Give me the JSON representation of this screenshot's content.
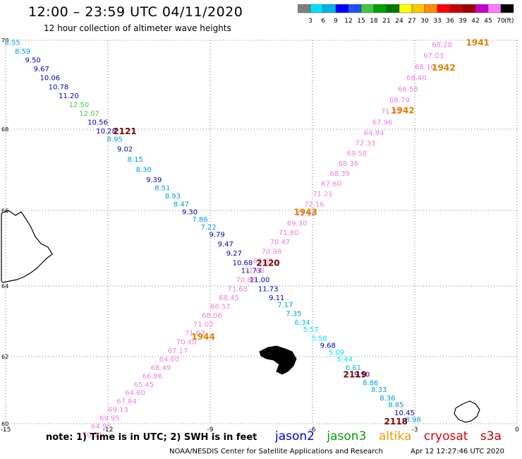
{
  "header": {
    "title": "12:00 – 23:59 UTC 04/11/2020",
    "subtitle": "12 hour collection of altimeter wave heights"
  },
  "colorbar": {
    "unit": "(ft)",
    "labels": [
      "3",
      "6",
      "9",
      "12",
      "15",
      "18",
      "21",
      "24",
      "27",
      "30",
      "33",
      "36",
      "39",
      "42",
      "45",
      "70"
    ],
    "colors": [
      "#808080",
      "#00e0ff",
      "#00b4e6",
      "#0000ff",
      "#1e50ff",
      "#3cc83c",
      "#00a000",
      "#007800",
      "#ffff00",
      "#ffc800",
      "#ff8c00",
      "#ff0000",
      "#c80000",
      "#a00000",
      "#c800c8",
      "#ff78ff",
      "#000000"
    ]
  },
  "footer": {
    "note": "note:  1) Time is in UTC;  2) SWH is in feet",
    "legend": [
      {
        "name": "jason2",
        "color": "#0000e0"
      },
      {
        "name": "jason3",
        "color": "#00a000"
      },
      {
        "name": "altika",
        "color": "#ff9900"
      },
      {
        "name": "cryosat",
        "color": "#e00000"
      },
      {
        "name": "s3a",
        "color": "#c00000"
      }
    ],
    "credit": "NOAA/NESDIS Center for Satellite Applications and Research",
    "stamp": "Apr 12 12:27:46 UTC 2020"
  },
  "chart_data": {
    "type": "scatter",
    "xlim": [
      -15,
      0
    ],
    "ylim": [
      60,
      70
    ],
    "x_ticks": [
      "-15",
      "-12",
      "-9",
      "-6",
      "-3",
      "0"
    ],
    "y_ticks": [
      "60",
      "62",
      "64",
      "66",
      "68",
      "70"
    ],
    "grid": true,
    "pass_labels": [
      {
        "text": "2121",
        "x": -11.85,
        "y": 67.88,
        "color": "#800000"
      },
      {
        "text": "2120",
        "x": -7.65,
        "y": 64.53,
        "color": "#800000"
      },
      {
        "text": "2119",
        "x": -5.1,
        "y": 61.38,
        "color": "#800000"
      },
      {
        "text": "2118",
        "x": -3.9,
        "y": 59.98,
        "color": "#800000"
      },
      {
        "text": "1941",
        "x": -1.5,
        "y": 69.88,
        "color": "#e08000"
      },
      {
        "text": "1942",
        "x": -2.5,
        "y": 69.32,
        "color": "#e08000"
      },
      {
        "text": "1942",
        "x": -3.7,
        "y": 68.36,
        "color": "#e08000"
      },
      {
        "text": "1943",
        "x": -6.55,
        "y": 65.88,
        "color": "#e08000"
      },
      {
        "text": "1944",
        "x": -9.55,
        "y": 62.48,
        "color": "#e08000"
      }
    ],
    "series": [
      {
        "name": "track-2120-2121",
        "points": [
          {
            "x": -14.8,
            "y": 69.9,
            "v": "8.55",
            "c": "#00a0e0"
          },
          {
            "x": -14.5,
            "y": 69.7,
            "v": "8.59",
            "c": "#00a0e0"
          },
          {
            "x": -14.2,
            "y": 69.5,
            "v": "9.50",
            "c": "#0000c0"
          },
          {
            "x": -13.95,
            "y": 69.3,
            "v": "9.67",
            "c": "#0000c0"
          },
          {
            "x": -13.7,
            "y": 69.1,
            "v": "10.06",
            "c": "#0000c0"
          },
          {
            "x": -13.45,
            "y": 68.9,
            "v": "10.78",
            "c": "#0000c0"
          },
          {
            "x": -13.15,
            "y": 68.7,
            "v": "11.20",
            "c": "#0000c0"
          },
          {
            "x": -12.85,
            "y": 68.5,
            "v": "12.50",
            "c": "#40d040"
          },
          {
            "x": -12.55,
            "y": 68.3,
            "v": "12.07",
            "c": "#40d040"
          },
          {
            "x": -12.3,
            "y": 68.1,
            "v": "10.56",
            "c": "#0000c0"
          },
          {
            "x": -12.05,
            "y": 67.9,
            "v": "10.28",
            "c": "#0000c0"
          },
          {
            "x": -11.8,
            "y": 67.7,
            "v": "8.95",
            "c": "#00a0e0"
          },
          {
            "x": -11.5,
            "y": 67.45,
            "v": "9.02",
            "c": "#0000c0"
          },
          {
            "x": -11.2,
            "y": 67.2,
            "v": "8.15",
            "c": "#00a0e0"
          },
          {
            "x": -10.95,
            "y": 66.95,
            "v": "8.30",
            "c": "#00a0e0"
          },
          {
            "x": -10.65,
            "y": 66.7,
            "v": "9.39",
            "c": "#0000c0"
          },
          {
            "x": -10.4,
            "y": 66.5,
            "v": "8.51",
            "c": "#00a0e0"
          },
          {
            "x": -10.1,
            "y": 66.3,
            "v": "8.93",
            "c": "#00a0e0"
          },
          {
            "x": -9.85,
            "y": 66.1,
            "v": "8.47",
            "c": "#00a0e0"
          },
          {
            "x": -9.6,
            "y": 65.9,
            "v": "9.30",
            "c": "#0000c0"
          },
          {
            "x": -9.3,
            "y": 65.7,
            "v": "7.86",
            "c": "#00a0e0"
          },
          {
            "x": -9.05,
            "y": 65.5,
            "v": "7.22",
            "c": "#00a0e0"
          },
          {
            "x": -8.8,
            "y": 65.3,
            "v": "9.79",
            "c": "#0000c0"
          },
          {
            "x": -8.55,
            "y": 65.05,
            "v": "9.47",
            "c": "#0000c0"
          },
          {
            "x": -8.3,
            "y": 64.8,
            "v": "9.27",
            "c": "#0000c0"
          },
          {
            "x": -8.05,
            "y": 64.55,
            "v": "10.68",
            "c": "#0000c0"
          },
          {
            "x": -7.8,
            "y": 64.35,
            "v": "11.73",
            "c": "#0000c0"
          },
          {
            "x": -7.55,
            "y": 64.1,
            "v": "11.00",
            "c": "#0000c0"
          },
          {
            "x": -7.3,
            "y": 63.85,
            "v": "11.73",
            "c": "#0000c0"
          },
          {
            "x": -7.05,
            "y": 63.6,
            "v": "9.11",
            "c": "#0000c0"
          },
          {
            "x": -6.8,
            "y": 63.4,
            "v": "7.17",
            "c": "#00a0e0"
          },
          {
            "x": -6.55,
            "y": 63.15,
            "v": "7.35",
            "c": "#00a0e0"
          },
          {
            "x": -6.3,
            "y": 62.9,
            "v": "6.34",
            "c": "#00c0e8"
          },
          {
            "x": -6.05,
            "y": 62.7,
            "v": "5.57",
            "c": "#00e0ff"
          },
          {
            "x": -5.8,
            "y": 62.45,
            "v": "5.58",
            "c": "#00e0ff"
          },
          {
            "x": -5.55,
            "y": 62.25,
            "v": "9.68",
            "c": "#0000c0"
          },
          {
            "x": -5.3,
            "y": 62.05,
            "v": "5.09",
            "c": "#00e0ff"
          },
          {
            "x": -5.05,
            "y": 61.85,
            "v": "5.44",
            "c": "#00e0ff"
          },
          {
            "x": -4.8,
            "y": 61.6,
            "v": "6.61",
            "c": "#00c0e8"
          },
          {
            "x": -4.55,
            "y": 61.4,
            "v": "9.10",
            "c": "#0000c0"
          },
          {
            "x": -4.3,
            "y": 61.15,
            "v": "8.86",
            "c": "#00a0e0"
          },
          {
            "x": -4.05,
            "y": 60.95,
            "v": "8.33",
            "c": "#00a0e0"
          },
          {
            "x": -3.8,
            "y": 60.7,
            "v": "8.36",
            "c": "#00a0e0"
          },
          {
            "x": -3.55,
            "y": 60.5,
            "v": "8.85",
            "c": "#00a0e0"
          },
          {
            "x": -3.3,
            "y": 60.25,
            "v": "10.45",
            "c": "#0000c0"
          },
          {
            "x": -3.05,
            "y": 60.05,
            "v": "8.98",
            "c": "#00a0e0"
          }
        ]
      },
      {
        "name": "track-1941-1944",
        "points": [
          {
            "x": -2.2,
            "y": 69.85,
            "v": "68.28",
            "c": "#f080e0"
          },
          {
            "x": -2.45,
            "y": 69.6,
            "v": "67.03",
            "c": "#f080e0"
          },
          {
            "x": -2.7,
            "y": 69.35,
            "v": "68.10",
            "c": "#f080e0"
          },
          {
            "x": -2.95,
            "y": 69.1,
            "v": "68.40",
            "c": "#f080e0"
          },
          {
            "x": -3.2,
            "y": 68.85,
            "v": "66.58",
            "c": "#f080e0"
          },
          {
            "x": -3.45,
            "y": 68.6,
            "v": "68.79",
            "c": "#f080e0"
          },
          {
            "x": -3.7,
            "y": 68.35,
            "v": "71.22",
            "c": "#f080e0"
          },
          {
            "x": -3.95,
            "y": 68.1,
            "v": "67.96",
            "c": "#f080e0"
          },
          {
            "x": -4.2,
            "y": 67.85,
            "v": "64.84",
            "c": "#f080e0"
          },
          {
            "x": -4.45,
            "y": 67.6,
            "v": "72.33",
            "c": "#f080e0"
          },
          {
            "x": -4.7,
            "y": 67.35,
            "v": "69.58",
            "c": "#f080e0"
          },
          {
            "x": -4.95,
            "y": 67.1,
            "v": "68.36",
            "c": "#f080e0"
          },
          {
            "x": -5.2,
            "y": 66.85,
            "v": "68.39",
            "c": "#f080e0"
          },
          {
            "x": -5.45,
            "y": 66.6,
            "v": "67.60",
            "c": "#f080e0"
          },
          {
            "x": -5.7,
            "y": 66.35,
            "v": "71.21",
            "c": "#f080e0"
          },
          {
            "x": -5.95,
            "y": 66.1,
            "v": "72.16",
            "c": "#f080e0"
          },
          {
            "x": -6.2,
            "y": 65.85,
            "v": "71.06",
            "c": "#f080e0"
          },
          {
            "x": -6.45,
            "y": 65.6,
            "v": "69.30",
            "c": "#f080e0"
          },
          {
            "x": -6.7,
            "y": 65.35,
            "v": "71.80",
            "c": "#f080e0"
          },
          {
            "x": -6.95,
            "y": 65.1,
            "v": "70.47",
            "c": "#f080e0"
          },
          {
            "x": -7.2,
            "y": 64.85,
            "v": "70.98",
            "c": "#f080e0"
          },
          {
            "x": -7.45,
            "y": 64.6,
            "v": "68.83",
            "c": "#f080e0"
          },
          {
            "x": -7.7,
            "y": 64.35,
            "v": "71.68",
            "c": "#f080e0"
          },
          {
            "x": -7.95,
            "y": 64.1,
            "v": "70.88",
            "c": "#f080e0"
          },
          {
            "x": -8.2,
            "y": 63.85,
            "v": "71.68",
            "c": "#f080e0"
          },
          {
            "x": -8.45,
            "y": 63.6,
            "v": "68.45",
            "c": "#f080e0"
          },
          {
            "x": -8.7,
            "y": 63.35,
            "v": "66.57",
            "c": "#f080e0"
          },
          {
            "x": -8.95,
            "y": 63.1,
            "v": "68.06",
            "c": "#f080e0"
          },
          {
            "x": -9.2,
            "y": 62.85,
            "v": "71.02",
            "c": "#f080e0"
          },
          {
            "x": -9.45,
            "y": 62.6,
            "v": "71.63",
            "c": "#f080e0"
          },
          {
            "x": -9.7,
            "y": 62.35,
            "v": "70.40",
            "c": "#f080e0"
          },
          {
            "x": -9.95,
            "y": 62.1,
            "v": "67.17",
            "c": "#f080e0"
          },
          {
            "x": -10.2,
            "y": 61.85,
            "v": "64.60",
            "c": "#f080e0"
          },
          {
            "x": -10.45,
            "y": 61.6,
            "v": "68.49",
            "c": "#f080e0"
          },
          {
            "x": -10.7,
            "y": 61.35,
            "v": "66.86",
            "c": "#f080e0"
          },
          {
            "x": -10.95,
            "y": 61.1,
            "v": "65.45",
            "c": "#f080e0"
          },
          {
            "x": -11.2,
            "y": 60.85,
            "v": "64.60",
            "c": "#f080e0"
          },
          {
            "x": -11.45,
            "y": 60.6,
            "v": "67.84",
            "c": "#f080e0"
          },
          {
            "x": -11.7,
            "y": 60.35,
            "v": "69.13",
            "c": "#f080e0"
          },
          {
            "x": -11.95,
            "y": 60.1,
            "v": "69.95",
            "c": "#f080e0"
          },
          {
            "x": -12.2,
            "y": 59.85,
            "v": "64.95",
            "c": "#f080e0"
          },
          {
            "x": -12.45,
            "y": 59.6,
            "v": "70.51",
            "c": "#f080e0"
          }
        ]
      }
    ]
  }
}
